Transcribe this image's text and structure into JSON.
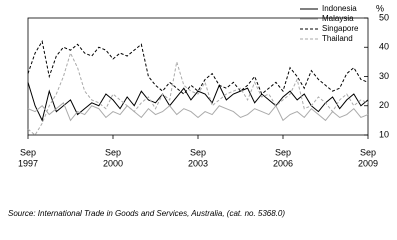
{
  "chart_data": {
    "type": "line",
    "y_label": "%",
    "source": "Source: International Trade in Goods and Services, Australia, (cat. no. 5368.0)",
    "x": [
      "1997-09",
      "1997-12",
      "1998-03",
      "1998-06",
      "1998-09",
      "1998-12",
      "1999-03",
      "1999-06",
      "1999-09",
      "1999-12",
      "2000-03",
      "2000-06",
      "2000-09",
      "2000-12",
      "2001-03",
      "2001-06",
      "2001-09",
      "2001-12",
      "2002-03",
      "2002-06",
      "2002-09",
      "2002-12",
      "2003-03",
      "2003-06",
      "2003-09",
      "2003-12",
      "2004-03",
      "2004-06",
      "2004-09",
      "2004-12",
      "2005-03",
      "2005-06",
      "2005-09",
      "2005-12",
      "2006-03",
      "2006-06",
      "2006-09",
      "2006-12",
      "2007-03",
      "2007-06",
      "2007-09",
      "2007-12",
      "2008-03",
      "2008-06",
      "2008-09",
      "2008-12",
      "2009-03",
      "2009-06",
      "2009-09"
    ],
    "xlim": [
      "1997-09",
      "2009-09"
    ],
    "xticks": [
      {
        "value": "1997-09",
        "label": "Sep",
        "year": "1997"
      },
      {
        "value": "2000-09",
        "label": "Sep",
        "year": "2000"
      },
      {
        "value": "2003-09",
        "label": "Sep",
        "year": "2003"
      },
      {
        "value": "2006-09",
        "label": "Sep",
        "year": "2006"
      },
      {
        "value": "2009-09",
        "label": "Sep",
        "year": "2009"
      }
    ],
    "ylim": [
      10,
      50
    ],
    "yticks": [
      10,
      20,
      30,
      40,
      50
    ],
    "series": [
      {
        "name": "Indonesia",
        "color": "#000000",
        "dash": false,
        "values": [
          28,
          20,
          15,
          25,
          18,
          20,
          22,
          17,
          19,
          21,
          20,
          24,
          22,
          19,
          23,
          20,
          25,
          22,
          21,
          24,
          20,
          23,
          26,
          22,
          25,
          24,
          21,
          27,
          22,
          24,
          25,
          26,
          21,
          24,
          22,
          20,
          23,
          25,
          22,
          24,
          20,
          18,
          21,
          23,
          19,
          22,
          24,
          20,
          22
        ]
      },
      {
        "name": "Malaysia",
        "color": "#aaaaaa",
        "dash": false,
        "values": [
          19,
          18,
          20,
          17,
          19,
          21,
          15,
          18,
          17,
          20,
          19,
          16,
          18,
          17,
          20,
          18,
          16,
          19,
          17,
          18,
          20,
          17,
          19,
          18,
          16,
          18,
          17,
          20,
          19,
          18,
          16,
          17,
          19,
          18,
          17,
          20,
          15,
          17,
          18,
          16,
          19,
          17,
          15,
          18,
          16,
          17,
          19,
          16,
          17
        ]
      },
      {
        "name": "Singapore",
        "color": "#000000",
        "dash": true,
        "values": [
          31,
          38,
          42,
          30,
          37,
          40,
          39,
          41,
          38,
          37,
          40,
          39,
          36,
          38,
          37,
          39,
          41,
          30,
          27,
          25,
          28,
          26,
          24,
          27,
          25,
          29,
          31,
          27,
          26,
          28,
          25,
          27,
          30,
          24,
          26,
          28,
          25,
          33,
          30,
          26,
          32,
          29,
          27,
          25,
          26,
          31,
          33,
          29,
          28
        ]
      },
      {
        "name": "Thailand",
        "color": "#aaaaaa",
        "dash": true,
        "values": [
          12,
          10,
          14,
          20,
          24,
          30,
          38,
          33,
          25,
          22,
          21,
          19,
          24,
          22,
          20,
          18,
          21,
          23,
          19,
          24,
          22,
          35,
          27,
          25,
          24,
          28,
          20,
          22,
          24,
          25,
          26,
          22,
          28,
          23,
          24,
          20,
          22,
          24,
          29,
          19,
          20,
          23,
          21,
          18,
          22,
          24,
          20,
          22,
          21
        ]
      }
    ]
  }
}
